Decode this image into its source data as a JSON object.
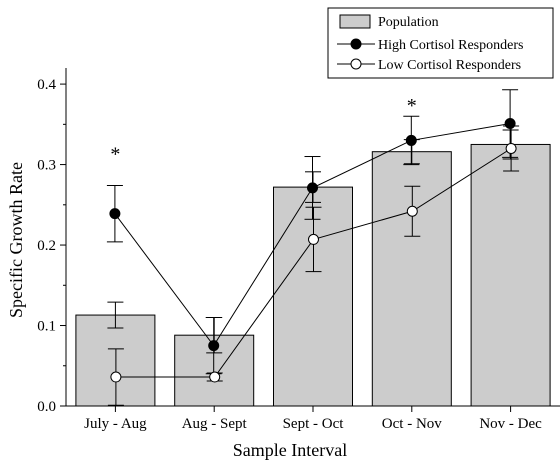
{
  "chart_data": {
    "type": "bar",
    "categories": [
      "July - Aug",
      "Aug - Sept",
      "Sept - Oct",
      "Oct - Nov",
      "Nov - Dec"
    ],
    "xlabel": "Sample Interval",
    "ylabel": "Specific Growth Rate",
    "ylim": [
      0,
      0.42
    ],
    "yticks": [
      "0.0",
      "0.1",
      "0.2",
      "0.3",
      "0.4"
    ],
    "grid": false,
    "legend_position": "top-right",
    "bars": {
      "name": "Population",
      "values": [
        0.113,
        0.088,
        0.272,
        0.316,
        0.325
      ],
      "error": [
        0.016,
        0.022,
        0.019,
        0.015,
        0.018
      ],
      "color": "#cccccc"
    },
    "series": [
      {
        "name": "High Cortisol Responders",
        "marker": "filled",
        "values": [
          0.239,
          0.075,
          0.271,
          0.33,
          0.351
        ],
        "error": [
          0.035,
          0.035,
          0.039,
          0.03,
          0.042
        ]
      },
      {
        "name": "Low Cortisol Responders",
        "marker": "open",
        "values": [
          0.036,
          0.036,
          0.207,
          0.242,
          0.32
        ],
        "error": [
          0.035,
          0.005,
          0.04,
          0.031,
          0.028
        ]
      }
    ],
    "annotations": [
      {
        "category": "July - Aug",
        "text": "*",
        "y": 0.32
      },
      {
        "category": "Oct - Nov",
        "text": "*",
        "y": 0.38
      }
    ]
  }
}
